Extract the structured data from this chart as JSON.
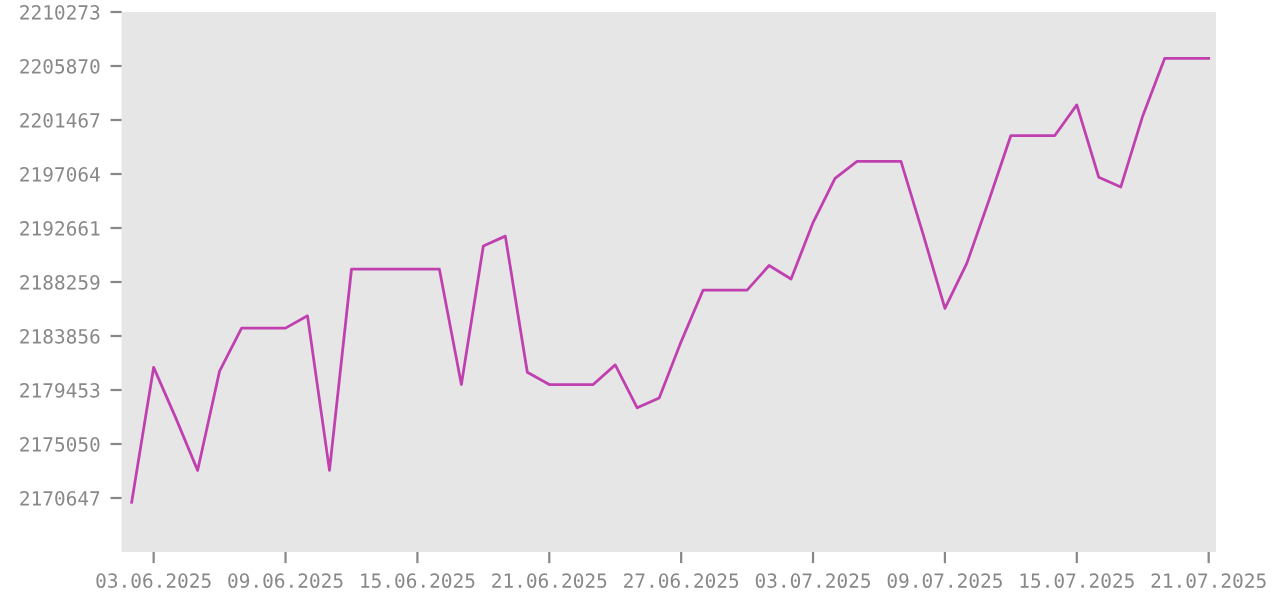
{
  "chart_data": {
    "type": "line",
    "x": [
      "2025-06-02",
      "2025-06-03",
      "2025-06-04",
      "2025-06-05",
      "2025-06-06",
      "2025-06-07",
      "2025-06-08",
      "2025-06-09",
      "2025-06-10",
      "2025-06-11",
      "2025-06-12",
      "2025-06-13",
      "2025-06-14",
      "2025-06-15",
      "2025-06-16",
      "2025-06-17",
      "2025-06-18",
      "2025-06-19",
      "2025-06-20",
      "2025-06-21",
      "2025-06-22",
      "2025-06-23",
      "2025-06-24",
      "2025-06-25",
      "2025-06-26",
      "2025-06-27",
      "2025-06-28",
      "2025-06-29",
      "2025-06-30",
      "2025-07-01",
      "2025-07-02",
      "2025-07-03",
      "2025-07-04",
      "2025-07-05",
      "2025-07-06",
      "2025-07-07",
      "2025-07-08",
      "2025-07-09",
      "2025-07-10",
      "2025-07-11",
      "2025-07-12",
      "2025-07-13",
      "2025-07-14",
      "2025-07-15",
      "2025-07-16",
      "2025-07-17",
      "2025-07-18",
      "2025-07-19",
      "2025-07-20",
      "2025-07-21"
    ],
    "series": [
      {
        "color": "#c040b0",
        "values": [
          2170300,
          2181300,
          2177200,
          2172900,
          2181000,
          2184500,
          2184500,
          2184500,
          2185500,
          2172900,
          2189300,
          2189300,
          2189300,
          2189300,
          2189300,
          2179900,
          2191200,
          2192000,
          2180900,
          2179900,
          2179900,
          2179900,
          2181500,
          2178000,
          2178800,
          2183400,
          2187600,
          2187600,
          2187600,
          2189600,
          2188500,
          2193100,
          2196700,
          2198100,
          2198100,
          2198100,
          2192200,
          2186100,
          2189800,
          2194900,
          2200200,
          2200200,
          2200200,
          2202700,
          2196800,
          2196000,
          2201800,
          2206500,
          2206500,
          2206500
        ]
      }
    ],
    "xlim": [
      "2025-06-01T13:00",
      "2025-07-21T08:00"
    ],
    "ylim": [
      2166244,
      2210273
    ],
    "xticks": [
      {
        "value": "2025-06-03",
        "label": "03.06.2025"
      },
      {
        "value": "2025-06-09",
        "label": "09.06.2025"
      },
      {
        "value": "2025-06-15",
        "label": "15.06.2025"
      },
      {
        "value": "2025-06-21",
        "label": "21.06.2025"
      },
      {
        "value": "2025-06-27",
        "label": "27.06.2025"
      },
      {
        "value": "2025-07-03",
        "label": "03.07.2025"
      },
      {
        "value": "2025-07-09",
        "label": "09.07.2025"
      },
      {
        "value": "2025-07-15",
        "label": "15.07.2025"
      },
      {
        "value": "2025-07-21",
        "label": "21.07.2025"
      }
    ],
    "yticks": [
      2170647,
      2175050,
      2179453,
      2183856,
      2188259,
      2192661,
      2197064,
      2201467,
      2205870,
      2210273
    ],
    "grid": false,
    "marker": "none",
    "line_style": "solid"
  }
}
